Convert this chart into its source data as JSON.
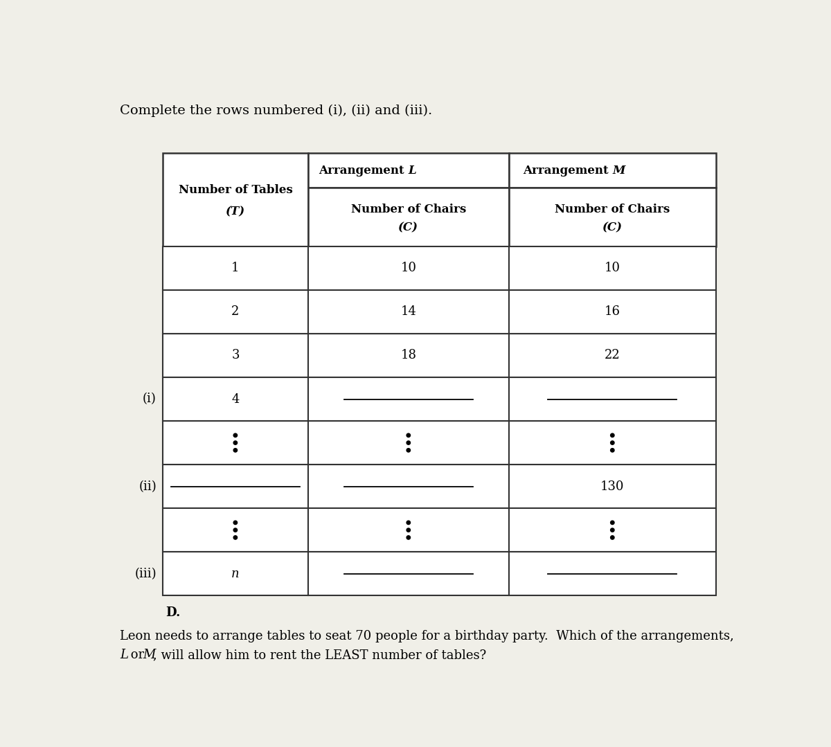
{
  "title_text": "Complete the rows numbered (i), (ii) and (iii).",
  "bottom_line1_parts": [
    {
      "text": "Leon needs to arrange tables to seat 70 people for a birthday party.  Which of the arrangements,",
      "italic": false
    }
  ],
  "bottom_line2_parts": [
    {
      "text": "L",
      "italic": true
    },
    {
      "text": " or ",
      "italic": false
    },
    {
      "text": "M",
      "italic": true
    },
    {
      "text": ", will allow him to rent the LEAST number of tables?",
      "italic": false
    }
  ],
  "d_label": "D.",
  "background_color": "#f0efe8",
  "rows": [
    {
      "T": "1",
      "L": "10",
      "M": "10",
      "label": "",
      "dots": false,
      "blank_T": false,
      "blank_L": false,
      "blank_M": false
    },
    {
      "T": "2",
      "L": "14",
      "M": "16",
      "label": "",
      "dots": false,
      "blank_T": false,
      "blank_L": false,
      "blank_M": false
    },
    {
      "T": "3",
      "L": "18",
      "M": "22",
      "label": "",
      "dots": false,
      "blank_T": false,
      "blank_L": false,
      "blank_M": false
    },
    {
      "T": "4",
      "L": "",
      "M": "",
      "label": "(i)",
      "dots": false,
      "blank_T": false,
      "blank_L": true,
      "blank_M": true
    },
    {
      "T": "",
      "L": "",
      "M": "",
      "label": "",
      "dots": true,
      "blank_T": false,
      "blank_L": false,
      "blank_M": false
    },
    {
      "T": "",
      "L": "",
      "M": "130",
      "label": "(ii)",
      "dots": false,
      "blank_T": true,
      "blank_L": true,
      "blank_M": false
    },
    {
      "T": "",
      "L": "",
      "M": "",
      "label": "",
      "dots": true,
      "blank_T": false,
      "blank_L": false,
      "blank_M": false
    },
    {
      "T": "n",
      "L": "",
      "M": "",
      "label": "(iii)",
      "dots": false,
      "blank_T": false,
      "blank_L": true,
      "blank_M": true
    }
  ],
  "font_size_title": 14,
  "font_size_header": 12,
  "font_size_data": 13,
  "font_size_label": 13,
  "font_size_bottom": 13,
  "font_size_d": 13
}
